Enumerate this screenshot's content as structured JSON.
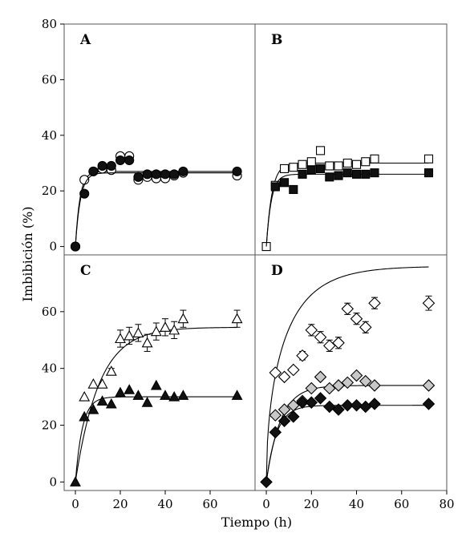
{
  "chart_data": {
    "type": "scatter",
    "xlabel": "Tiempo (h)",
    "ylabel": "Imbibición (%)",
    "panels": [
      {
        "label": "A",
        "xlim": [
          -5,
          80
        ],
        "ylim": [
          -3,
          80
        ],
        "xticks": [],
        "yticks": [
          "0",
          "20",
          "40",
          "60",
          "80"
        ],
        "series": [
          {
            "marker": "circle-open",
            "x": [
              0,
              4,
              8,
              12,
              16,
              20,
              24,
              28,
              32,
              36,
              40,
              44,
              48,
              72
            ],
            "y": [
              0,
              24,
              27,
              28,
              27.5,
              32.5,
              32.5,
              24,
              25,
              24.5,
              24.5,
              25.5,
              26.5,
              25.5
            ],
            "fit": {
              "ymax": 27,
              "k": 0.5
            }
          },
          {
            "marker": "circle-filled",
            "x": [
              0,
              4,
              8,
              12,
              16,
              20,
              24,
              28,
              32,
              36,
              40,
              44,
              48,
              72
            ],
            "y": [
              0,
              19,
              27,
              29,
              29,
              31,
              31,
              25,
              26,
              26,
              26,
              26,
              27,
              27
            ],
            "fit": {
              "ymax": 26.5,
              "k": 0.45
            }
          }
        ]
      },
      {
        "label": "B",
        "xlim": [
          -5,
          80
        ],
        "ylim": [
          -3,
          80
        ],
        "xticks": [],
        "yticks": [],
        "series": [
          {
            "marker": "square-open",
            "x": [
              0,
              4,
              8,
              12,
              16,
              20,
              24,
              28,
              32,
              36,
              40,
              44,
              48,
              72
            ],
            "y": [
              0,
              22,
              28,
              28.5,
              29.5,
              30.5,
              34.5,
              29,
              29,
              30,
              29.5,
              30.5,
              31.5,
              31.5
            ],
            "fit": {
              "ymax": 30,
              "k": 0.4
            }
          },
          {
            "marker": "square-filled",
            "x": [
              4,
              8,
              12,
              16,
              20,
              24,
              28,
              32,
              36,
              40,
              44,
              48,
              72
            ],
            "y": [
              21.5,
              23,
              20.5,
              26,
              27.5,
              28,
              25,
              25.5,
              26.5,
              26,
              26,
              26.5,
              26.5
            ],
            "fit": {
              "ymax": 26,
              "k": 0.45
            }
          }
        ]
      },
      {
        "label": "C",
        "xlim": [
          -5,
          80
        ],
        "ylim": [
          -3,
          80
        ],
        "xticks": [
          "0",
          "20",
          "40",
          "60"
        ],
        "yticks": [
          "0",
          "20",
          "40",
          "60"
        ],
        "series": [
          {
            "marker": "triangle-open",
            "x": [
              4,
              8,
              12,
              16,
              20,
              24,
              28,
              32,
              36,
              40,
              44,
              48,
              72
            ],
            "y": [
              30,
              34.5,
              34.5,
              39,
              50.5,
              51.5,
              52.5,
              49,
              53,
              54.5,
              53.5,
              57.5,
              57.5
            ],
            "err": [
              0,
              0,
              0,
              1,
              3,
              3,
              3,
              3,
              3,
              3,
              3,
              3,
              3
            ],
            "fit": {
              "ymax": 54.5,
              "k": 0.095
            }
          },
          {
            "marker": "triangle-filled",
            "x": [
              0,
              4,
              8,
              12,
              16,
              20,
              24,
              28,
              32,
              36,
              40,
              44,
              48,
              72
            ],
            "y": [
              0,
              23,
              25.5,
              28.5,
              27.5,
              31.5,
              32.5,
              30.5,
              28,
              34,
              30.5,
              30,
              30.5,
              30.5
            ],
            "fit": {
              "ymax": 30,
              "k": 0.32
            }
          }
        ]
      },
      {
        "label": "D",
        "xlim": [
          -5,
          80
        ],
        "ylim": [
          -3,
          80
        ],
        "xticks": [
          "0",
          "20",
          "40",
          "60",
          "80"
        ],
        "yticks": [],
        "series": [
          {
            "marker": "diamond-open",
            "x": [
              4,
              8,
              12,
              16,
              20,
              24,
              28,
              32,
              36,
              40,
              44,
              48,
              72
            ],
            "y": [
              38.5,
              37,
              39.5,
              44.5,
              53.5,
              51,
              48,
              49,
              61,
              57.5,
              54.5,
              63,
              63
            ],
            "err": [
              0,
              0,
              0,
              1.5,
              2,
              2,
              2,
              2,
              2,
              2,
              2,
              2,
              2.5
            ],
            "fit": {
              "ymax": 76,
              "k": 0.07,
              "h": 0.5
            }
          },
          {
            "marker": "diamond-gray",
            "x": [
              4,
              8,
              12,
              16,
              20,
              24,
              28,
              32,
              36,
              40,
              44,
              48,
              72
            ],
            "y": [
              23.5,
              25.5,
              27,
              28.5,
              33,
              37,
              33,
              34,
              35,
              37.5,
              35.5,
              34,
              34
            ],
            "fit": {
              "ymax": 34,
              "k": 0.16
            }
          },
          {
            "marker": "diamond-filled",
            "x": [
              0,
              4,
              8,
              12,
              16,
              20,
              24,
              28,
              32,
              36,
              40,
              44,
              48,
              72
            ],
            "y": [
              0,
              17.5,
              21.5,
              23,
              28,
              28,
              29.5,
              26.5,
              25.5,
              27,
              27,
              26.5,
              27.5,
              27.5
            ],
            "fit": {
              "ymax": 27,
              "k": 0.22
            }
          }
        ]
      }
    ]
  }
}
